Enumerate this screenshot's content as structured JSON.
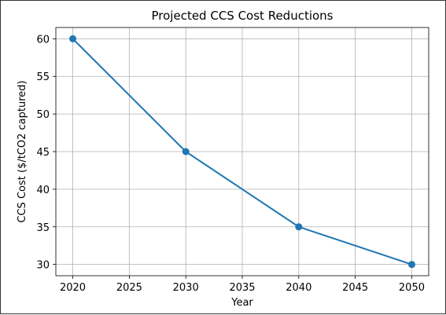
{
  "chart_data": {
    "type": "line",
    "title": "Projected CCS Cost Reductions",
    "xlabel": "Year",
    "ylabel": "CCS Cost ($/tCO2 captured)",
    "x": [
      2020,
      2030,
      2040,
      2050
    ],
    "series": [
      {
        "values": [
          60,
          45,
          35,
          30
        ],
        "color": "#1f77b4",
        "marker": "circle"
      }
    ],
    "xticks": [
      2020,
      2025,
      2030,
      2035,
      2040,
      2045,
      2050
    ],
    "yticks": [
      30,
      35,
      40,
      45,
      50,
      55,
      60
    ],
    "xlim": [
      2018.5,
      2051.5
    ],
    "ylim": [
      28.5,
      61.5
    ],
    "grid": true
  }
}
